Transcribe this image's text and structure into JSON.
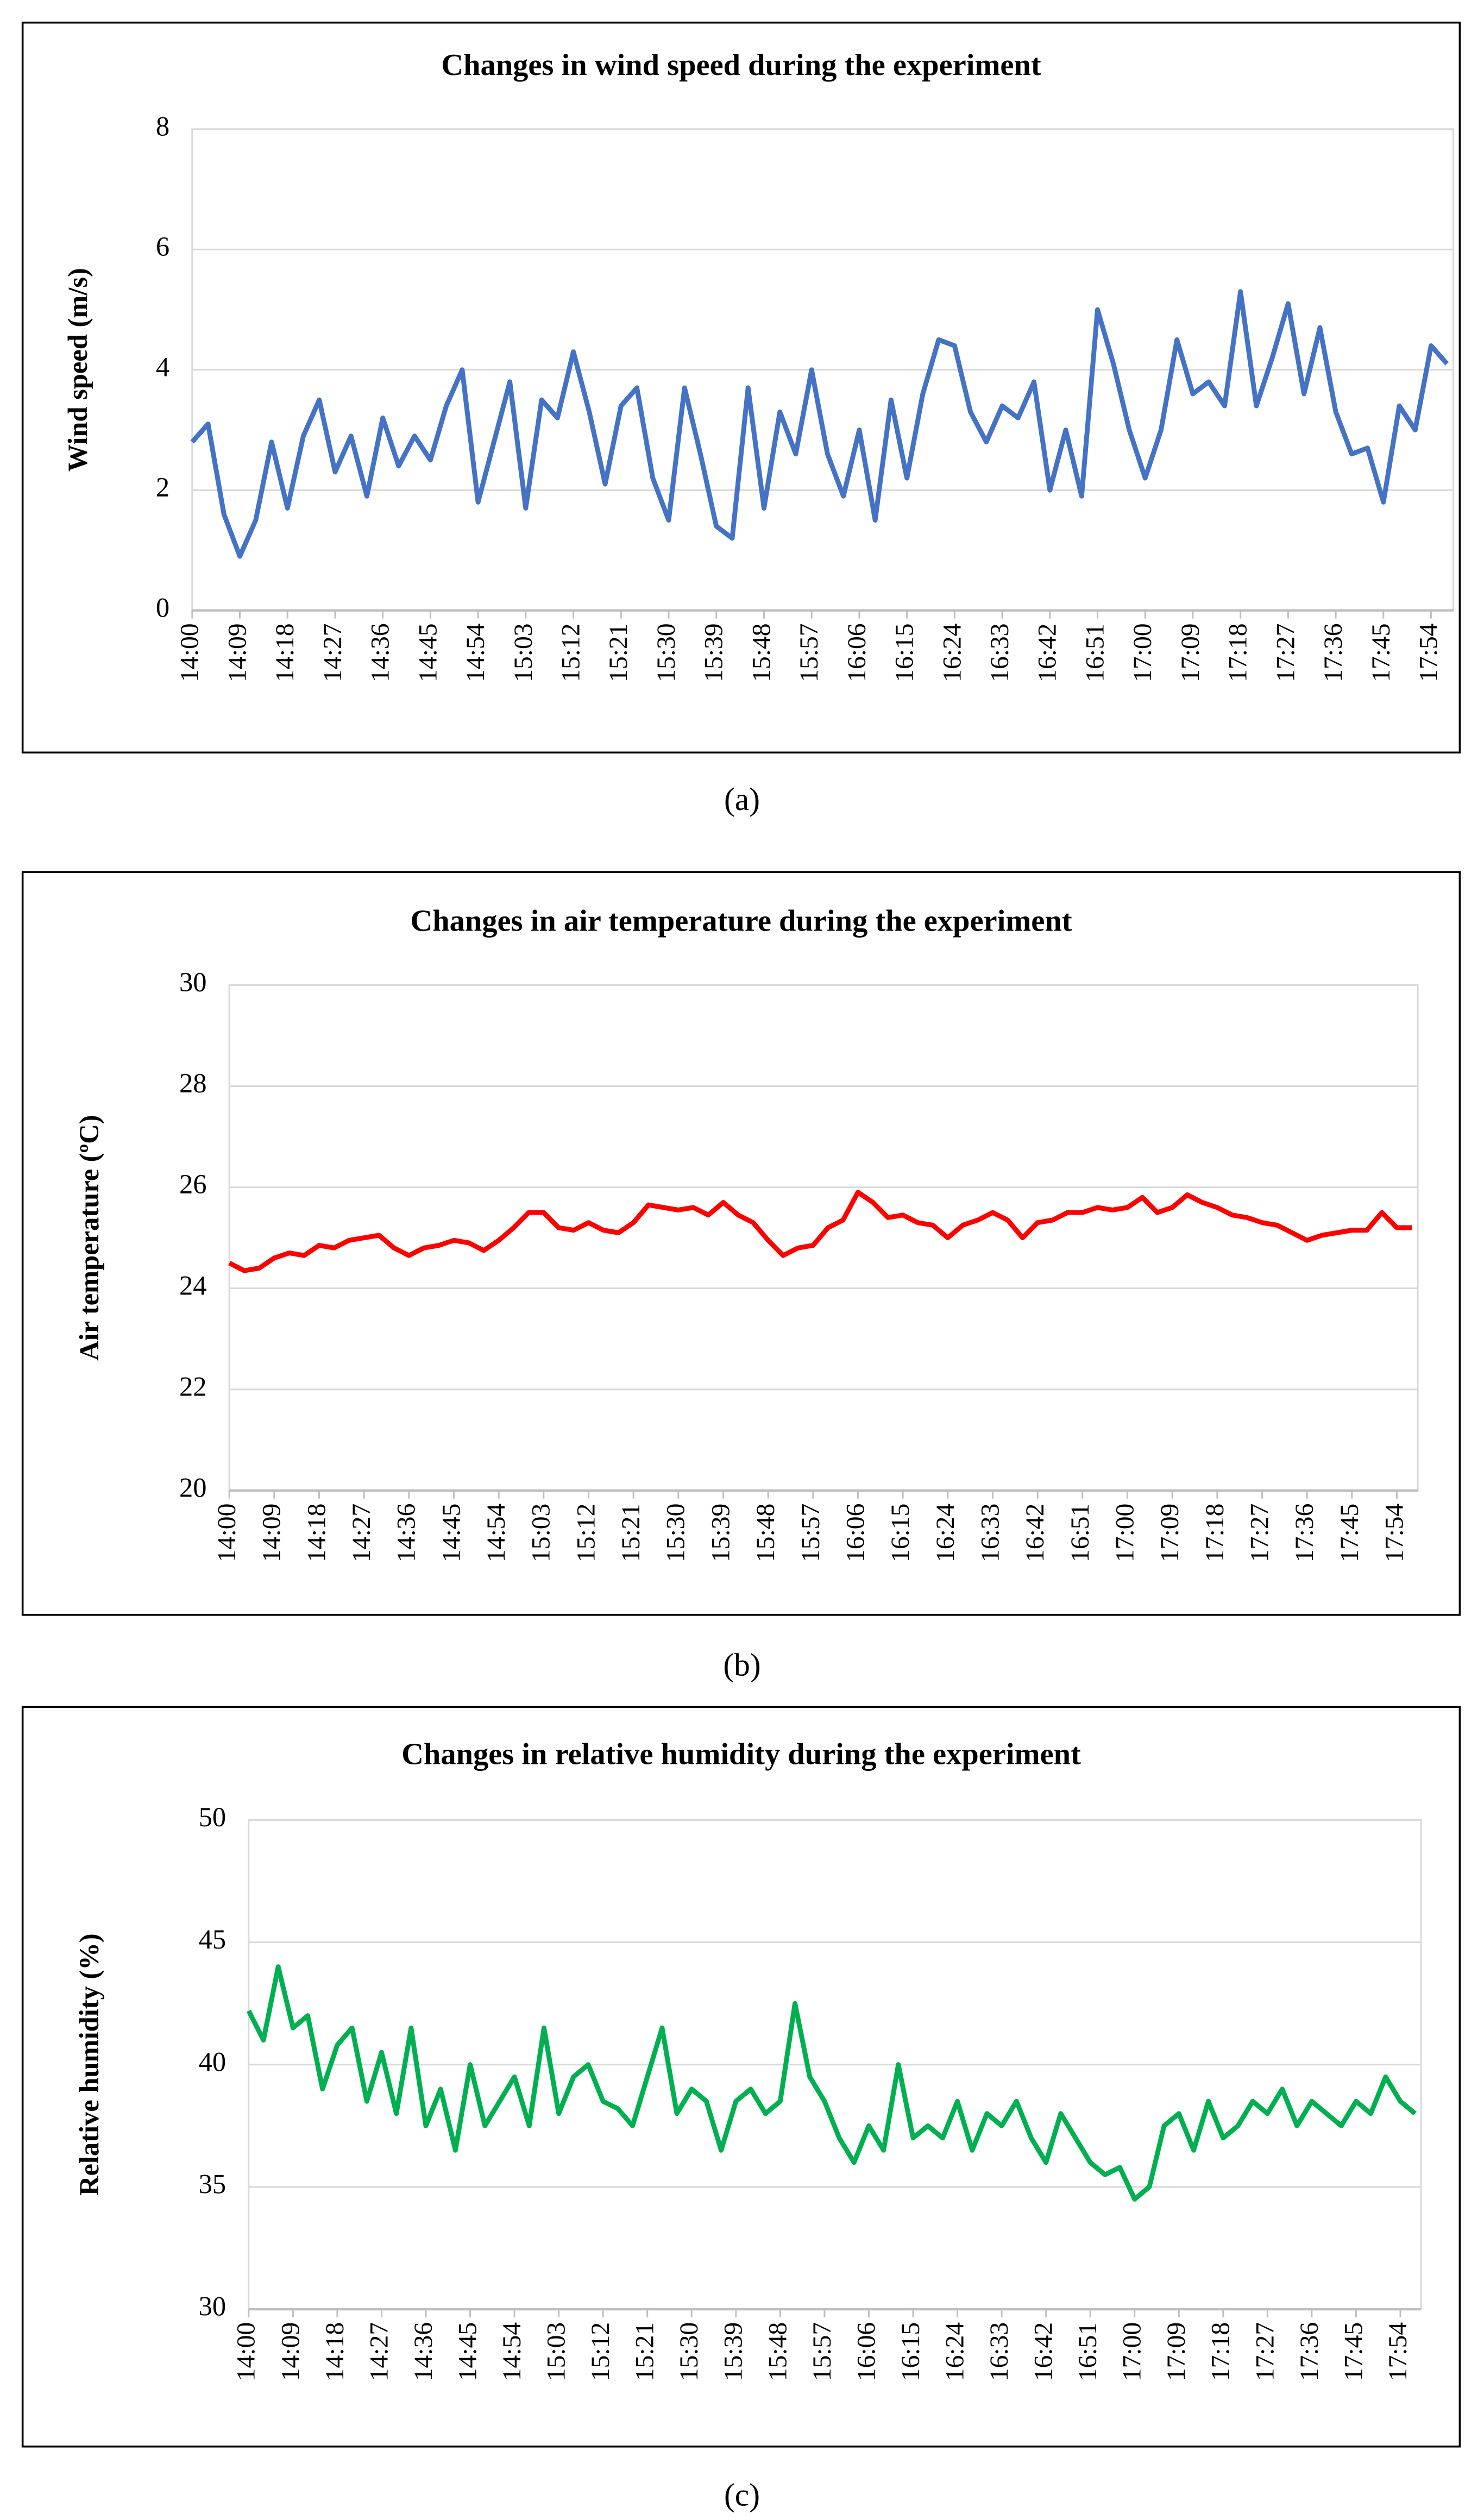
{
  "chart_data": [
    {
      "type": "line",
      "title": "Changes in wind speed during the experiment",
      "ylabel": "Wind  speed (m/s)",
      "caption": "(a)",
      "categories": [
        "14:00",
        null,
        null,
        "14:09",
        null,
        null,
        "14:18",
        null,
        null,
        "14:27",
        null,
        null,
        "14:36",
        null,
        null,
        "14:45",
        null,
        null,
        "14:54",
        null,
        null,
        "15:03",
        null,
        null,
        "15:12",
        null,
        null,
        "15:21",
        null,
        null,
        "15:30",
        null,
        null,
        "15:39",
        null,
        null,
        "15:48",
        null,
        null,
        "15:57",
        null,
        null,
        "16:06",
        null,
        null,
        "16:15",
        null,
        null,
        "16:24",
        null,
        null,
        "16:33",
        null,
        null,
        "16:42",
        null,
        null,
        "16:51",
        null,
        null,
        "17:00",
        null,
        null,
        "17:09",
        null,
        null,
        "17:18",
        null,
        null,
        "17:27",
        null,
        null,
        "17:36",
        null,
        null,
        "17:45",
        null,
        null,
        "17:54",
        null
      ],
      "values": [
        2.8,
        3.1,
        1.6,
        0.9,
        1.5,
        2.8,
        1.7,
        2.9,
        3.5,
        2.3,
        2.9,
        1.9,
        3.2,
        2.4,
        2.9,
        2.5,
        3.4,
        4.0,
        1.8,
        2.8,
        3.8,
        1.7,
        3.5,
        3.2,
        4.3,
        3.3,
        2.1,
        3.4,
        3.7,
        2.2,
        1.5,
        3.7,
        2.6,
        1.4,
        1.2,
        3.7,
        1.7,
        3.3,
        2.6,
        4.0,
        2.6,
        1.9,
        3.0,
        1.5,
        3.5,
        2.2,
        3.6,
        4.5,
        4.4,
        3.3,
        2.8,
        3.4,
        3.2,
        3.8,
        2.0,
        3.0,
        1.9,
        5.0,
        4.1,
        3.0,
        2.2,
        3.0,
        4.5,
        3.6,
        3.8,
        3.4,
        5.3,
        3.4,
        4.2,
        5.1,
        3.6,
        4.7,
        3.3,
        2.6,
        2.7,
        1.8,
        3.4,
        3.0,
        4.4,
        4.1
      ],
      "color": "#4472c4",
      "ylim": [
        0,
        8
      ],
      "yticks": [
        0,
        2,
        4,
        6,
        8
      ],
      "grid": true
    },
    {
      "type": "line",
      "title": "Changes in air temperature during the experiment",
      "ylabel": "Air temperature (ºC)",
      "caption": "(b)",
      "categories": [
        "14:00",
        null,
        null,
        "14:09",
        null,
        null,
        "14:18",
        null,
        null,
        "14:27",
        null,
        null,
        "14:36",
        null,
        null,
        "14:45",
        null,
        null,
        "14:54",
        null,
        null,
        "15:03",
        null,
        null,
        "15:12",
        null,
        null,
        "15:21",
        null,
        null,
        "15:30",
        null,
        null,
        "15:39",
        null,
        null,
        "15:48",
        null,
        null,
        "15:57",
        null,
        null,
        "16:06",
        null,
        null,
        "16:15",
        null,
        null,
        "16:24",
        null,
        null,
        "16:33",
        null,
        null,
        "16:42",
        null,
        null,
        "16:51",
        null,
        null,
        "17:00",
        null,
        null,
        "17:09",
        null,
        null,
        "17:18",
        null,
        null,
        "17:27",
        null,
        null,
        "17:36",
        null,
        null,
        "17:45",
        null,
        null,
        "17:54",
        null
      ],
      "values": [
        24.5,
        24.35,
        24.4,
        24.6,
        24.7,
        24.65,
        24.85,
        24.8,
        24.95,
        25.0,
        25.05,
        24.8,
        24.65,
        24.8,
        24.85,
        24.95,
        24.9,
        24.75,
        24.95,
        25.2,
        25.5,
        25.5,
        25.2,
        25.15,
        25.3,
        25.15,
        25.1,
        25.3,
        25.65,
        25.6,
        25.55,
        25.6,
        25.45,
        25.7,
        25.45,
        25.3,
        24.95,
        24.65,
        24.8,
        24.85,
        25.2,
        25.35,
        25.9,
        25.7,
        25.4,
        25.45,
        25.3,
        25.25,
        25.0,
        25.25,
        25.35,
        25.5,
        25.35,
        25.0,
        25.3,
        25.35,
        25.5,
        25.5,
        25.6,
        25.55,
        25.6,
        25.8,
        25.5,
        25.6,
        25.85,
        25.7,
        25.6,
        25.45,
        25.4,
        25.3,
        25.25,
        25.1,
        24.95,
        25.05,
        25.1,
        25.15,
        25.15,
        25.5,
        25.2,
        25.2
      ],
      "color": "#ff0000",
      "ylim": [
        20,
        30
      ],
      "yticks": [
        20,
        22,
        24,
        26,
        28,
        30
      ],
      "grid": true
    },
    {
      "type": "line",
      "title": "Changes in relative humidity  during the experiment",
      "ylabel": "Relative humidity (%)",
      "caption": "(c)",
      "categories": [
        "14:00",
        null,
        null,
        "14:09",
        null,
        null,
        "14:18",
        null,
        null,
        "14:27",
        null,
        null,
        "14:36",
        null,
        null,
        "14:45",
        null,
        null,
        "14:54",
        null,
        null,
        "15:03",
        null,
        null,
        "15:12",
        null,
        null,
        "15:21",
        null,
        null,
        "15:30",
        null,
        null,
        "15:39",
        null,
        null,
        "15:48",
        null,
        null,
        "15:57",
        null,
        null,
        "16:06",
        null,
        null,
        "16:15",
        null,
        null,
        "16:24",
        null,
        null,
        "16:33",
        null,
        null,
        "16:42",
        null,
        null,
        "16:51",
        null,
        null,
        "17:00",
        null,
        null,
        "17:09",
        null,
        null,
        "17:18",
        null,
        null,
        "17:27",
        null,
        null,
        "17:36",
        null,
        null,
        "17:45",
        null,
        null,
        "17:54",
        null
      ],
      "values": [
        42.2,
        41.0,
        44.0,
        41.5,
        42.0,
        39.0,
        40.8,
        41.5,
        38.5,
        40.5,
        38.0,
        41.5,
        37.5,
        39.0,
        36.5,
        40.0,
        37.5,
        38.5,
        39.5,
        37.5,
        41.5,
        38.0,
        39.5,
        40.0,
        38.5,
        38.2,
        37.5,
        39.5,
        41.5,
        38.0,
        39.0,
        38.5,
        36.5,
        38.5,
        39.0,
        38.0,
        38.5,
        42.5,
        39.5,
        38.5,
        37.0,
        36.0,
        37.5,
        36.5,
        40.0,
        37.0,
        37.5,
        37.0,
        38.5,
        36.5,
        38.0,
        37.5,
        38.5,
        37.0,
        36.0,
        38.0,
        37.0,
        36.0,
        35.5,
        35.8,
        34.5,
        35.0,
        37.5,
        38.0,
        36.5,
        38.5,
        37.0,
        37.5,
        38.5,
        38.0,
        39.0,
        37.5,
        38.5,
        38.0,
        37.5,
        38.5,
        38.0,
        39.5,
        38.5,
        38.0
      ],
      "color": "#00b050",
      "ylim": [
        30,
        50
      ],
      "yticks": [
        30,
        35,
        40,
        45,
        50
      ],
      "grid": true
    }
  ]
}
